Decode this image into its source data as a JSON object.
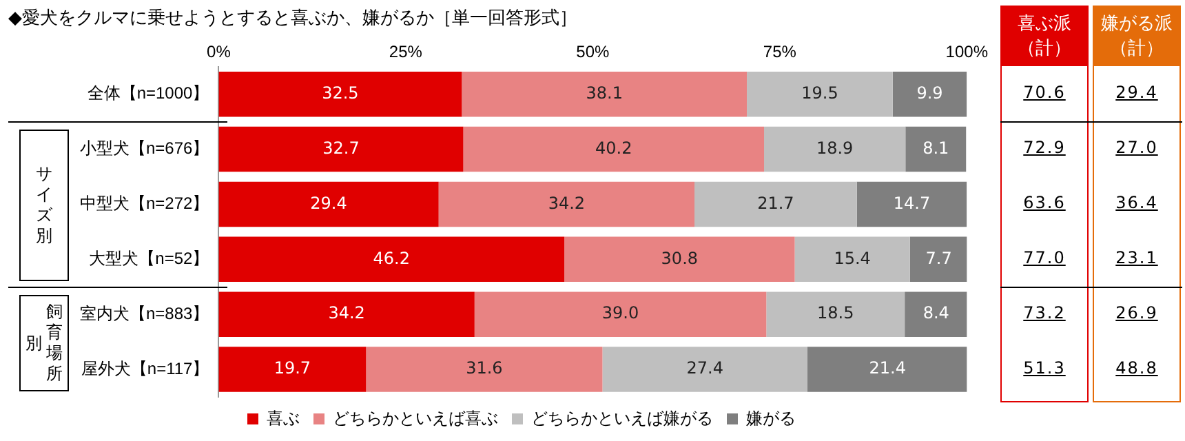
{
  "chart_data": {
    "type": "bar",
    "orientation": "horizontal",
    "stacked": true,
    "title": "◆愛犬をクルマに乗せようとすると喜ぶか、嫌がるか［単一回答形式］",
    "categories": [
      "全体【n=1000】",
      "小型犬【n=676】",
      "中型犬【n=272】",
      "大型犬【n=52】",
      "室内犬【n=883】",
      "屋外犬【n=117】"
    ],
    "series": [
      {
        "name": "喜ぶ",
        "color": "#e00000",
        "values": [
          32.5,
          32.7,
          29.4,
          46.2,
          34.2,
          19.7
        ],
        "value_labels": [
          "32.5",
          "32.7",
          "29.4",
          "46.2",
          "34.2",
          "19.7"
        ]
      },
      {
        "name": "どちらかといえば喜ぶ",
        "color": "#e88383",
        "values": [
          38.1,
          40.2,
          34.2,
          30.8,
          39.0,
          31.6
        ],
        "value_labels": [
          "38.1",
          "40.2",
          "34.2",
          "30.8",
          "39.0",
          "31.6"
        ]
      },
      {
        "name": "どちらかといえば嫌がる",
        "color": "#bfbfbf",
        "values": [
          19.5,
          18.9,
          21.7,
          15.4,
          18.5,
          27.4
        ],
        "value_labels": [
          "19.5",
          "18.9",
          "21.7",
          "15.4",
          "18.5",
          "27.4"
        ]
      },
      {
        "name": "嫌がる",
        "color": "#7f7f7f",
        "values": [
          9.9,
          8.1,
          14.7,
          7.7,
          8.4,
          21.4
        ],
        "value_labels": [
          "9.9",
          "8.1",
          "14.7",
          "7.7",
          "8.4",
          "21.4"
        ]
      }
    ],
    "xlim": [
      0,
      100
    ],
    "xticks": [
      {
        "value": 0,
        "label": "0%"
      },
      {
        "value": 25,
        "label": "25%"
      },
      {
        "value": 50,
        "label": "50%"
      },
      {
        "value": 75,
        "label": "75%"
      },
      {
        "value": 100,
        "label": "100%"
      }
    ],
    "grid": false,
    "legend": "bottom",
    "annotations": [
      "サイズ別",
      "飼育場所別",
      "喜ぶ派（計）",
      "嫌がる派（計）",
      "70.6",
      "29.4",
      "72.9",
      "27.0",
      "63.6",
      "36.4",
      "77.0",
      "23.1",
      "73.2",
      "26.9",
      "51.3",
      "48.8"
    ]
  }
}
